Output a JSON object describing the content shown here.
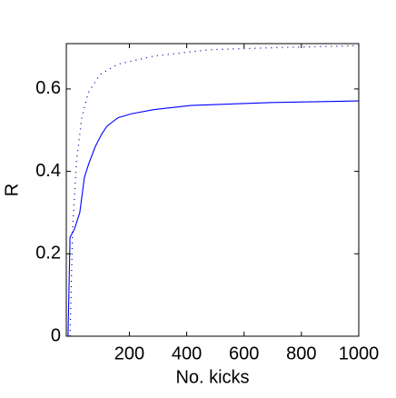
{
  "chart_data": {
    "type": "line",
    "xlabel": "No. kicks",
    "ylabel": "R",
    "xlim": [
      -20,
      1000
    ],
    "ylim": [
      0,
      0.71
    ],
    "xticks": [
      200,
      400,
      600,
      800,
      1000
    ],
    "yticks": [
      0,
      0.2,
      0.4,
      0.6
    ],
    "series": [
      {
        "color": "#0000ff",
        "linestyle": "solid",
        "x": [
          -14,
          -7,
          8.5,
          27,
          43,
          59,
          81,
          103,
          122,
          160,
          208,
          287,
          414,
          699,
          1000
        ],
        "values": [
          0,
          0.24,
          0.26,
          0.3,
          0.385,
          0.42,
          0.46,
          0.49,
          0.51,
          0.53,
          0.54,
          0.55,
          0.56,
          0.567,
          0.571
        ]
      },
      {
        "color": "#0000aa",
        "linestyle": "dotted",
        "x": [
          -7,
          2,
          15,
          34,
          56,
          97,
          160,
          287,
          477,
          699,
          1000
        ],
        "values": [
          0,
          0.26,
          0.42,
          0.53,
          0.59,
          0.635,
          0.66,
          0.68,
          0.695,
          0.7,
          0.705
        ]
      }
    ]
  }
}
